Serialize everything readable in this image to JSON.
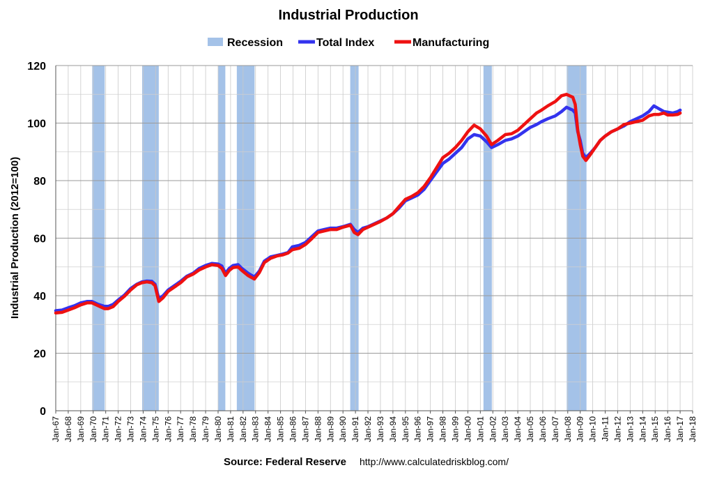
{
  "chart_data": {
    "type": "line",
    "title": "Industrial Production",
    "xlabel": "",
    "ylabel": "Industrial Production (2012=100)",
    "ylim": [
      0,
      120
    ],
    "yticks": [
      0,
      20,
      40,
      60,
      80,
      100,
      120
    ],
    "xlim": [
      1967,
      2018
    ],
    "xtick_labels": [
      "Jan-67",
      "Jan-68",
      "Jan-69",
      "Jan-70",
      "Jan-71",
      "Jan-72",
      "Jan-73",
      "Jan-74",
      "Jan-75",
      "Jan-76",
      "Jan-77",
      "Jan-78",
      "Jan-79",
      "Jan-80",
      "Jan-81",
      "Jan-82",
      "Jan-83",
      "Jan-84",
      "Jan-85",
      "Jan-86",
      "Jan-87",
      "Jan-88",
      "Jan-89",
      "Jan-90",
      "Jan-91",
      "Jan-92",
      "Jan-93",
      "Jan-94",
      "Jan-95",
      "Jan-96",
      "Jan-97",
      "Jan-98",
      "Jan-99",
      "Jan-00",
      "Jan-01",
      "Jan-02",
      "Jan-03",
      "Jan-04",
      "Jan-05",
      "Jan-06",
      "Jan-07",
      "Jan-08",
      "Jan-09",
      "Jan-10",
      "Jan-11",
      "Jan-12",
      "Jan-13",
      "Jan-14",
      "Jan-15",
      "Jan-16",
      "Jan-17",
      "Jan-18"
    ],
    "grid": true,
    "legend_position": "top-center",
    "legend": [
      {
        "label": "Recession",
        "color": "#a4c2e8",
        "type": "bar"
      },
      {
        "label": "Total Index",
        "color": "#3333ee",
        "type": "line"
      },
      {
        "label": "Manufacturing",
        "color": "#ee1111",
        "type": "line"
      }
    ],
    "recessions": [
      {
        "start": 1969.92,
        "end": 1970.92
      },
      {
        "start": 1973.92,
        "end": 1975.25
      },
      {
        "start": 1980.0,
        "end": 1980.58
      },
      {
        "start": 1981.5,
        "end": 1982.92
      },
      {
        "start": 1990.58,
        "end": 1991.25
      },
      {
        "start": 2001.25,
        "end": 2001.92
      },
      {
        "start": 2007.92,
        "end": 2009.5
      }
    ],
    "series": [
      {
        "name": "Total Index",
        "color": "#3333ee",
        "x": [
          1967.0,
          1967.5,
          1968.0,
          1968.5,
          1969.0,
          1969.5,
          1969.9,
          1970.4,
          1970.9,
          1971.2,
          1971.6,
          1972.0,
          1972.5,
          1973.0,
          1973.5,
          1973.9,
          1974.3,
          1974.7,
          1974.95,
          1975.25,
          1975.6,
          1976.0,
          1976.5,
          1977.0,
          1977.5,
          1978.0,
          1978.5,
          1979.0,
          1979.5,
          1980.0,
          1980.3,
          1980.6,
          1980.9,
          1981.2,
          1981.6,
          1981.9,
          1982.4,
          1982.9,
          1983.3,
          1983.7,
          1984.2,
          1984.7,
          1985.2,
          1985.6,
          1985.95,
          1986.5,
          1987.0,
          1987.5,
          1988.0,
          1988.5,
          1989.0,
          1989.5,
          1990.0,
          1990.6,
          1990.9,
          1991.2,
          1991.6,
          1992.0,
          1992.5,
          1993.0,
          1993.5,
          1994.0,
          1994.5,
          1995.0,
          1995.5,
          1996.0,
          1996.5,
          1997.0,
          1997.5,
          1998.0,
          1998.5,
          1999.0,
          1999.5,
          2000.0,
          2000.5,
          2001.0,
          2001.5,
          2001.9,
          2002.4,
          2003.0,
          2003.5,
          2004.0,
          2004.5,
          2005.0,
          2005.5,
          2005.9,
          2006.4,
          2007.0,
          2007.5,
          2007.9,
          2008.4,
          2008.6,
          2008.8,
          2009.0,
          2009.2,
          2009.45,
          2009.8,
          2010.2,
          2010.6,
          2011.0,
          2011.5,
          2012.0,
          2012.5,
          2013.0,
          2013.5,
          2014.0,
          2014.5,
          2014.9,
          2015.3,
          2015.7,
          2016.0,
          2016.4,
          2016.8,
          2017.0
        ],
        "values": [
          34.8,
          35.0,
          35.8,
          36.5,
          37.5,
          38.0,
          38.0,
          37.0,
          36.3,
          36.3,
          37.0,
          38.5,
          40.2,
          42.5,
          44.0,
          44.8,
          45.1,
          45.0,
          44.0,
          39.0,
          40.0,
          42.0,
          43.5,
          45.0,
          46.8,
          47.8,
          49.5,
          50.5,
          51.2,
          51.0,
          50.3,
          47.8,
          49.5,
          50.5,
          50.8,
          49.5,
          47.8,
          46.5,
          48.5,
          52.0,
          53.5,
          54.0,
          54.5,
          55.0,
          57.0,
          57.5,
          58.5,
          60.5,
          62.5,
          63.0,
          63.5,
          63.5,
          64.0,
          64.8,
          63.0,
          62.0,
          63.5,
          64.0,
          65.0,
          66.0,
          67.0,
          68.5,
          70.5,
          73.0,
          74.0,
          75.0,
          77.0,
          80.0,
          83.0,
          86.0,
          87.5,
          89.5,
          91.5,
          94.5,
          96.0,
          95.5,
          93.5,
          91.5,
          92.5,
          94.0,
          94.5,
          95.5,
          97.0,
          98.5,
          99.5,
          100.5,
          101.5,
          102.5,
          104.0,
          105.5,
          104.5,
          103.5,
          97.0,
          94.0,
          89.5,
          88.0,
          89.5,
          91.5,
          94.0,
          95.5,
          97.0,
          98.0,
          99.0,
          100.5,
          101.5,
          102.5,
          104.0,
          106.0,
          105.0,
          104.0,
          103.8,
          103.5,
          104.0,
          104.5
        ]
      },
      {
        "name": "Manufacturing",
        "color": "#ee1111",
        "x": [
          1967.0,
          1967.5,
          1968.0,
          1968.5,
          1969.0,
          1969.5,
          1969.9,
          1970.4,
          1970.9,
          1971.2,
          1971.6,
          1972.0,
          1972.5,
          1973.0,
          1973.5,
          1973.9,
          1974.3,
          1974.7,
          1974.95,
          1975.25,
          1975.6,
          1976.0,
          1976.5,
          1977.0,
          1977.5,
          1978.0,
          1978.5,
          1979.0,
          1979.5,
          1980.0,
          1980.3,
          1980.6,
          1980.9,
          1981.2,
          1981.6,
          1981.9,
          1982.4,
          1982.9,
          1983.3,
          1983.7,
          1984.2,
          1984.7,
          1985.2,
          1985.6,
          1985.95,
          1986.5,
          1987.0,
          1987.5,
          1988.0,
          1988.5,
          1989.0,
          1989.5,
          1990.0,
          1990.6,
          1990.9,
          1991.2,
          1991.6,
          1992.0,
          1992.5,
          1993.0,
          1993.5,
          1994.0,
          1994.5,
          1995.0,
          1995.5,
          1996.0,
          1996.5,
          1997.0,
          1997.5,
          1998.0,
          1998.5,
          1999.0,
          1999.5,
          2000.0,
          2000.5,
          2001.0,
          2001.5,
          2001.9,
          2002.4,
          2003.0,
          2003.5,
          2004.0,
          2004.5,
          2005.0,
          2005.5,
          2005.9,
          2006.4,
          2007.0,
          2007.5,
          2007.9,
          2008.4,
          2008.6,
          2008.8,
          2009.0,
          2009.2,
          2009.45,
          2009.8,
          2010.2,
          2010.6,
          2011.0,
          2011.5,
          2012.0,
          2012.5,
          2013.0,
          2013.5,
          2014.0,
          2014.5,
          2014.9,
          2015.3,
          2015.7,
          2016.0,
          2016.4,
          2016.8,
          2017.0
        ],
        "values": [
          34.0,
          34.2,
          35.0,
          35.8,
          36.8,
          37.5,
          37.5,
          36.5,
          35.5,
          35.5,
          36.2,
          38.0,
          39.8,
          42.0,
          43.8,
          44.5,
          44.8,
          44.5,
          43.5,
          38.0,
          39.3,
          41.5,
          43.0,
          44.5,
          46.5,
          47.5,
          49.0,
          50.0,
          50.8,
          50.5,
          49.5,
          47.0,
          48.8,
          49.8,
          50.0,
          48.8,
          47.0,
          45.8,
          48.0,
          51.5,
          53.0,
          53.8,
          54.2,
          54.8,
          56.0,
          56.5,
          57.8,
          59.8,
          62.0,
          62.5,
          63.0,
          63.0,
          63.8,
          64.5,
          62.0,
          61.2,
          63.0,
          63.8,
          64.8,
          65.8,
          67.0,
          68.5,
          71.0,
          73.5,
          74.5,
          75.8,
          78.0,
          81.0,
          84.5,
          88.0,
          89.5,
          91.5,
          94.0,
          97.0,
          99.3,
          98.0,
          95.5,
          92.5,
          94.0,
          96.0,
          96.3,
          97.5,
          99.5,
          101.5,
          103.5,
          104.5,
          106.0,
          107.5,
          109.5,
          110.0,
          109.0,
          106.5,
          97.5,
          92.5,
          88.5,
          87.0,
          89.0,
          91.5,
          94.0,
          95.5,
          97.0,
          98.0,
          99.5,
          100.0,
          100.5,
          101.0,
          102.5,
          103.0,
          103.0,
          103.5,
          102.8,
          102.8,
          103.0,
          103.5
        ]
      }
    ]
  },
  "source": {
    "label": "Source: Federal Reserve",
    "url": "http://www.calculatedriskblog.com/"
  }
}
